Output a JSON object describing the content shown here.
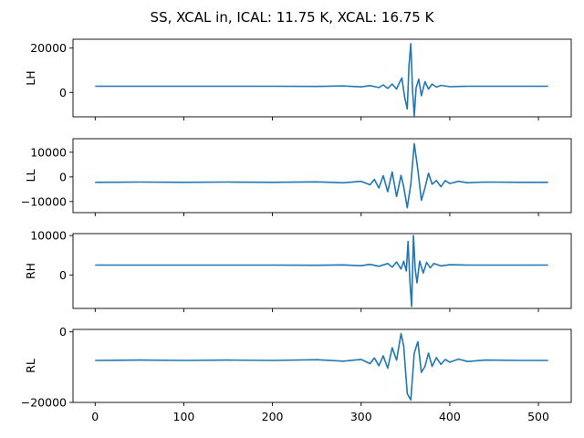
{
  "figure": {
    "title": "SS, XCAL in, ICAL: 11.75 K, XCAL: 16.75 K"
  },
  "chart_data": [
    {
      "type": "line",
      "ylabel": "LH",
      "xlim": [
        -25,
        537
      ],
      "ylim": [
        -11000,
        24000
      ],
      "yticks": [
        0,
        20000
      ],
      "xticks": [
        0,
        100,
        200,
        300,
        400,
        500
      ],
      "show_xtick_labels": false,
      "series": [
        {
          "color": "#1f77b4",
          "x": [
            0,
            100,
            200,
            250,
            280,
            300,
            310,
            320,
            325,
            330,
            335,
            340,
            343,
            346,
            349,
            352,
            354,
            356,
            358,
            360,
            362,
            365,
            368,
            372,
            376,
            380,
            385,
            390,
            400,
            420,
            450,
            511
          ],
          "y": [
            2800,
            2800,
            2800,
            2700,
            2900,
            2500,
            3100,
            2200,
            3400,
            1800,
            3800,
            1500,
            4200,
            6500,
            -2000,
            -7500,
            12000,
            22000,
            1000,
            -10500,
            2000,
            6000,
            -1500,
            4800,
            1500,
            3800,
            2400,
            3200,
            2600,
            2800,
            2800,
            2800
          ]
        }
      ]
    },
    {
      "type": "line",
      "ylabel": "LL",
      "xlim": [
        -25,
        537
      ],
      "ylim": [
        -14500,
        15500
      ],
      "yticks": [
        -10000,
        0,
        10000
      ],
      "xticks": [
        0,
        100,
        200,
        300,
        400,
        500
      ],
      "show_xtick_labels": false,
      "series": [
        {
          "color": "#1f77b4",
          "x": [
            0,
            50,
            100,
            150,
            200,
            250,
            280,
            300,
            310,
            315,
            320,
            325,
            330,
            335,
            340,
            345,
            348,
            352,
            356,
            360,
            364,
            368,
            372,
            376,
            380,
            385,
            390,
            395,
            400,
            410,
            420,
            440,
            480,
            511
          ],
          "y": [
            -2200,
            -2100,
            -2200,
            -2100,
            -2200,
            -2000,
            -2400,
            -1800,
            -3200,
            -1000,
            -4500,
            500,
            -6000,
            2000,
            -8000,
            600,
            -4000,
            -12500,
            -3000,
            13500,
            3000,
            -9500,
            -4500,
            1500,
            -3000,
            -1500,
            -4000,
            -1500,
            -2700,
            -1800,
            -2400,
            -2100,
            -2200,
            -2200
          ]
        }
      ]
    },
    {
      "type": "line",
      "ylabel": "RH",
      "xlim": [
        -25,
        537
      ],
      "ylim": [
        -8500,
        10500
      ],
      "yticks": [
        0,
        10000
      ],
      "xticks": [
        0,
        100,
        200,
        300,
        400,
        500
      ],
      "show_xtick_labels": false,
      "series": [
        {
          "color": "#1f77b4",
          "x": [
            0,
            100,
            200,
            250,
            280,
            300,
            310,
            320,
            330,
            335,
            340,
            345,
            348,
            351,
            353,
            355,
            357,
            359,
            361,
            363,
            366,
            370,
            374,
            378,
            382,
            390,
            400,
            420,
            450,
            511
          ],
          "y": [
            2500,
            2500,
            2500,
            2450,
            2550,
            2350,
            2700,
            2200,
            2900,
            2000,
            3300,
            1500,
            3500,
            1000,
            8500,
            -1500,
            -8000,
            10000,
            1500,
            -2000,
            3500,
            500,
            3200,
            1800,
            2900,
            2300,
            2600,
            2500,
            2500,
            2500
          ]
        }
      ]
    },
    {
      "type": "line",
      "ylabel": "RL",
      "xlim": [
        -25,
        537
      ],
      "ylim": [
        -20000,
        700
      ],
      "yticks": [
        -20000,
        0
      ],
      "xticks": [
        0,
        100,
        200,
        300,
        400,
        500
      ],
      "show_xtick_labels": true,
      "series": [
        {
          "color": "#1f77b4",
          "x": [
            0,
            50,
            100,
            150,
            200,
            250,
            280,
            300,
            310,
            315,
            320,
            325,
            330,
            335,
            340,
            345,
            348,
            352,
            356,
            360,
            364,
            368,
            372,
            376,
            380,
            385,
            390,
            395,
            400,
            410,
            420,
            440,
            480,
            511
          ],
          "y": [
            -8100,
            -8000,
            -8100,
            -8000,
            -8100,
            -7900,
            -8300,
            -7800,
            -9000,
            -7400,
            -9600,
            -6800,
            -10300,
            -4500,
            -8000,
            -500,
            -4000,
            -17500,
            -19300,
            -6000,
            -2800,
            -11500,
            -9800,
            -6000,
            -9800,
            -7300,
            -9200,
            -7800,
            -8600,
            -7700,
            -8400,
            -8000,
            -8100,
            -8100
          ]
        }
      ]
    }
  ]
}
